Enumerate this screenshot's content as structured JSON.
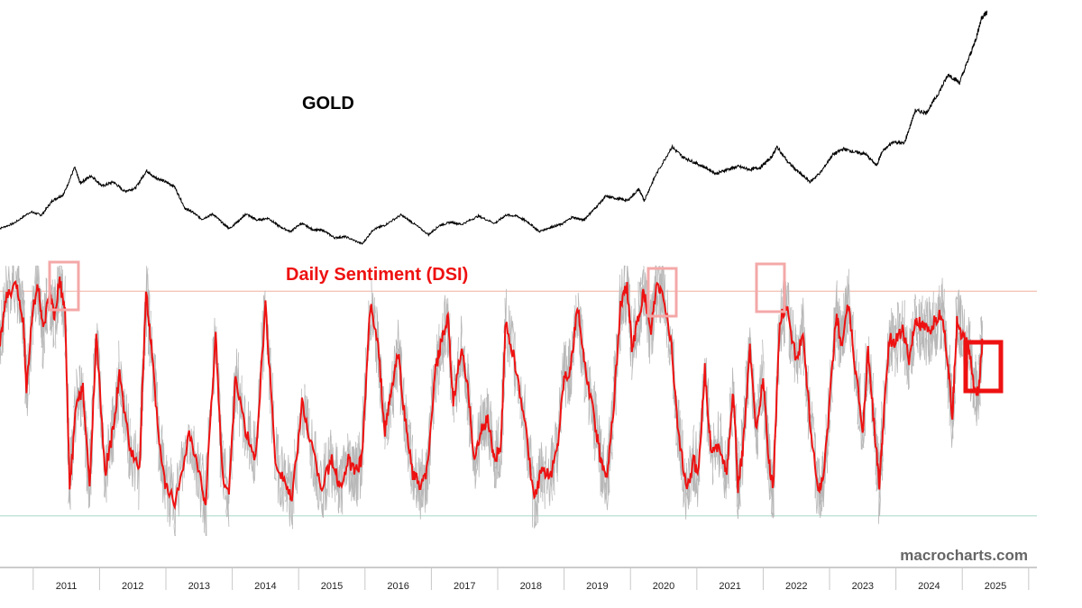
{
  "chart_data": [
    {
      "type": "line",
      "title": "GOLD",
      "x": [
        "2010-06",
        "2010-09",
        "2010-12",
        "2011-02",
        "2011-04",
        "2011-06",
        "2011-08",
        "2011-09",
        "2011-11",
        "2012-01",
        "2012-03",
        "2012-05",
        "2012-07",
        "2012-09",
        "2012-10",
        "2012-12",
        "2013-02",
        "2013-04",
        "2013-05",
        "2013-07",
        "2013-09",
        "2013-11",
        "2013-12",
        "2014-02",
        "2014-03",
        "2014-05",
        "2014-07",
        "2014-09",
        "2014-11",
        "2015-01",
        "2015-03",
        "2015-05",
        "2015-07",
        "2015-09",
        "2015-12",
        "2016-02",
        "2016-04",
        "2016-07",
        "2016-09",
        "2016-12",
        "2017-02",
        "2017-04",
        "2017-06",
        "2017-09",
        "2017-12",
        "2018-02",
        "2018-04",
        "2018-06",
        "2018-08",
        "2018-10",
        "2018-12",
        "2019-02",
        "2019-04",
        "2019-06",
        "2019-08",
        "2019-10",
        "2019-12",
        "2020-02",
        "2020-03",
        "2020-05",
        "2020-08",
        "2020-10",
        "2020-12",
        "2021-02",
        "2021-04",
        "2021-06",
        "2021-08",
        "2021-10",
        "2021-12",
        "2022-02",
        "2022-03",
        "2022-05",
        "2022-07",
        "2022-09",
        "2022-11",
        "2023-01",
        "2023-03",
        "2023-05",
        "2023-07",
        "2023-09",
        "2023-10",
        "2023-12",
        "2024-02",
        "2024-04",
        "2024-06",
        "2024-08",
        "2024-10",
        "2024-12",
        "2025-02",
        "2025-03",
        "2025-04",
        "2025-05"
      ],
      "values": [
        1200,
        1260,
        1370,
        1340,
        1480,
        1540,
        1800,
        1650,
        1720,
        1620,
        1660,
        1570,
        1600,
        1770,
        1720,
        1670,
        1620,
        1400,
        1380,
        1300,
        1350,
        1250,
        1210,
        1300,
        1350,
        1290,
        1310,
        1230,
        1180,
        1260,
        1200,
        1190,
        1120,
        1130,
        1060,
        1200,
        1240,
        1340,
        1270,
        1150,
        1240,
        1270,
        1250,
        1330,
        1260,
        1340,
        1330,
        1270,
        1180,
        1220,
        1250,
        1320,
        1290,
        1400,
        1520,
        1500,
        1480,
        1590,
        1480,
        1720,
        2000,
        1900,
        1850,
        1800,
        1740,
        1780,
        1810,
        1780,
        1800,
        1900,
        2000,
        1850,
        1750,
        1660,
        1760,
        1920,
        1980,
        1950,
        1930,
        1820,
        1950,
        2050,
        2030,
        2350,
        2330,
        2500,
        2700,
        2620,
        2900,
        3050,
        3250,
        3300
      ],
      "annotations": [
        "GOLD"
      ]
    },
    {
      "type": "line",
      "title": "Daily Sentiment (DSI)",
      "x_ticks": [
        "2011",
        "2012",
        "2013",
        "2014",
        "2015",
        "2016",
        "2017",
        "2018",
        "2019",
        "2020",
        "2021",
        "2022",
        "2023",
        "2024",
        "2025"
      ],
      "ylim": [
        0,
        100
      ],
      "reference_lines": [
        90,
        10
      ],
      "highlight_boxes": [
        "2011",
        "2020",
        "2021",
        "2025"
      ],
      "x": [
        2010.5,
        2010.6,
        2010.75,
        2010.85,
        2010.9,
        2011.0,
        2011.08,
        2011.15,
        2011.25,
        2011.32,
        2011.4,
        2011.48,
        2011.55,
        2011.65,
        2011.75,
        2011.85,
        2011.95,
        2012.08,
        2012.2,
        2012.3,
        2012.45,
        2012.6,
        2012.7,
        2012.78,
        2012.9,
        2013.0,
        2013.15,
        2013.35,
        2013.5,
        2013.6,
        2013.75,
        2013.85,
        2013.95,
        2014.05,
        2014.2,
        2014.35,
        2014.5,
        2014.65,
        2014.8,
        2014.9,
        2015.05,
        2015.2,
        2015.35,
        2015.5,
        2015.62,
        2015.75,
        2015.85,
        2015.95,
        2016.08,
        2016.2,
        2016.3,
        2016.4,
        2016.5,
        2016.6,
        2016.72,
        2016.85,
        2016.95,
        2017.05,
        2017.15,
        2017.25,
        2017.33,
        2017.45,
        2017.55,
        2017.65,
        2017.75,
        2017.85,
        2017.95,
        2018.05,
        2018.12,
        2018.25,
        2018.4,
        2018.55,
        2018.65,
        2018.8,
        2018.9,
        2019.0,
        2019.1,
        2019.2,
        2019.3,
        2019.45,
        2019.55,
        2019.65,
        2019.75,
        2019.85,
        2019.95,
        2020.02,
        2020.12,
        2020.2,
        2020.3,
        2020.4,
        2020.5,
        2020.62,
        2020.72,
        2020.85,
        2020.95,
        2021.02,
        2021.12,
        2021.22,
        2021.35,
        2021.45,
        2021.55,
        2021.62,
        2021.7,
        2021.8,
        2021.9,
        2022.0,
        2022.08,
        2022.15,
        2022.25,
        2022.35,
        2022.5,
        2022.6,
        2022.7,
        2022.82,
        2022.9,
        2023.0,
        2023.1,
        2023.18,
        2023.28,
        2023.4,
        2023.5,
        2023.58,
        2023.68,
        2023.75,
        2023.8,
        2023.9,
        2024.0,
        2024.1,
        2024.2,
        2024.3,
        2024.4,
        2024.5,
        2024.6,
        2024.7,
        2024.78,
        2024.85,
        2024.92,
        2025.0,
        2025.1,
        2025.18,
        2025.25,
        2025.3
      ],
      "values": [
        72,
        88,
        92,
        80,
        55,
        85,
        92,
        75,
        90,
        80,
        94,
        82,
        20,
        50,
        55,
        20,
        75,
        25,
        40,
        60,
        35,
        25,
        90,
        70,
        35,
        20,
        15,
        40,
        25,
        15,
        75,
        25,
        18,
        60,
        40,
        30,
        85,
        30,
        22,
        15,
        50,
        35,
        20,
        30,
        20,
        30,
        25,
        30,
        85,
        70,
        40,
        55,
        68,
        45,
        25,
        20,
        28,
        60,
        72,
        80,
        50,
        70,
        55,
        30,
        40,
        45,
        30,
        35,
        80,
        65,
        45,
        15,
        25,
        25,
        35,
        60,
        62,
        85,
        65,
        45,
        30,
        25,
        50,
        85,
        92,
        70,
        80,
        90,
        75,
        92,
        88,
        70,
        40,
        18,
        30,
        25,
        62,
        32,
        35,
        25,
        55,
        20,
        35,
        70,
        40,
        60,
        30,
        20,
        80,
        85,
        65,
        75,
        45,
        20,
        22,
        50,
        82,
        70,
        85,
        60,
        40,
        70,
        40,
        20,
        40,
        73,
        72,
        77,
        65,
        80,
        77,
        75,
        80,
        82,
        65,
        45,
        80,
        74,
        70,
        55,
        55,
        72
      ],
      "annotations": [
        "Daily Sentiment (DSI)"
      ]
    }
  ],
  "watermark": "macrocharts.com",
  "colors": {
    "gold_line": "#000000",
    "dsi_line": "#ee1111",
    "raw_dsi": "#b8b8b8",
    "upper_line": "#f0b0a0",
    "lower_line": "#a8d8c8",
    "light_box": "#f4a8a8",
    "strong_box": "#ee1111"
  }
}
